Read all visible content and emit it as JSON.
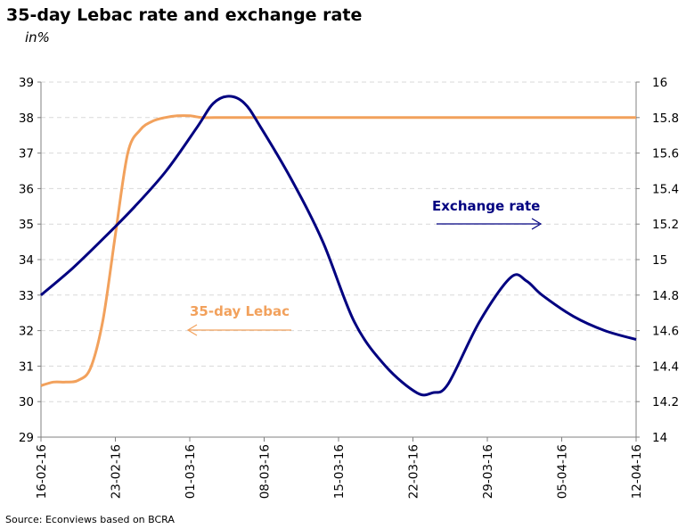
{
  "chart_data": {
    "type": "line",
    "title": "35-day Lebac rate and exchange rate",
    "subtitle": "in%",
    "source": "Source: Econviews based on BCRA",
    "x_ticks": [
      "16-02-16",
      "23-02-16",
      "01-03-16",
      "08-03-16",
      "15-03-16",
      "22-03-16",
      "29-03-16",
      "05-04-16",
      "12-04-16"
    ],
    "y_left": {
      "min": 29,
      "max": 39,
      "step": 1,
      "ticks": [
        "29",
        "30",
        "31",
        "32",
        "33",
        "34",
        "35",
        "36",
        "37",
        "38",
        "39"
      ]
    },
    "y_right": {
      "min": 14,
      "max": 16,
      "step": 0.2,
      "ticks": [
        "14",
        "14.2",
        "14.4",
        "14.6",
        "14.8",
        "15",
        "15.2",
        "15.4",
        "15.6",
        "15.8",
        "16"
      ]
    },
    "series": [
      {
        "name": "35-day Lebac",
        "axis": "left",
        "color": "#f2a15c",
        "points": [
          [
            0,
            30.45
          ],
          [
            0.5,
            30.55
          ],
          [
            1,
            30.55
          ],
          [
            1.5,
            30.6
          ],
          [
            2,
            30.95
          ],
          [
            2.5,
            32.3
          ],
          [
            3,
            34.7
          ],
          [
            3.5,
            37.0
          ],
          [
            4,
            37.65
          ],
          [
            4.5,
            37.9
          ],
          [
            5,
            38.0
          ],
          [
            5.5,
            38.05
          ],
          [
            6,
            38.05
          ],
          [
            6.5,
            38.0
          ],
          [
            7,
            38.0
          ],
          [
            8,
            38.0
          ],
          [
            9,
            38.0
          ],
          [
            10,
            38.0
          ],
          [
            11,
            38.0
          ],
          [
            12,
            38.0
          ],
          [
            13,
            38.0
          ],
          [
            14,
            38.0
          ],
          [
            15,
            38.0
          ],
          [
            16,
            38.0
          ],
          [
            17,
            38.0
          ],
          [
            18,
            38.0
          ],
          [
            19,
            38.0
          ],
          [
            20,
            38.0
          ],
          [
            21,
            38.0
          ],
          [
            22,
            38.0
          ],
          [
            23,
            38.0
          ],
          [
            24,
            38.0
          ]
        ]
      },
      {
        "name": "Exchange rate",
        "axis": "right",
        "color": "#000080",
        "points": [
          [
            0,
            14.8
          ],
          [
            1,
            14.95
          ],
          [
            2,
            15.12
          ],
          [
            3,
            15.3
          ],
          [
            4,
            15.5
          ],
          [
            5,
            15.75
          ],
          [
            5.5,
            15.88
          ],
          [
            6,
            15.92
          ],
          [
            6.5,
            15.88
          ],
          [
            7,
            15.75
          ],
          [
            8,
            15.45
          ],
          [
            9,
            15.1
          ],
          [
            10,
            14.65
          ],
          [
            11,
            14.4
          ],
          [
            12,
            14.25
          ],
          [
            12.5,
            14.25
          ],
          [
            13,
            14.3
          ],
          [
            14,
            14.65
          ],
          [
            15,
            14.9
          ],
          [
            15.5,
            14.88
          ],
          [
            16,
            14.8
          ],
          [
            17,
            14.68
          ],
          [
            18,
            14.6
          ],
          [
            19,
            14.55
          ]
        ]
      }
    ],
    "annotations": [
      {
        "text": "Exchange rate",
        "color": "#000080",
        "arrow": "right",
        "points_to_axis": "right"
      },
      {
        "text": "35-day Lebac",
        "color": "#f2a15c",
        "arrow": "left",
        "points_to_axis": "left"
      }
    ]
  }
}
